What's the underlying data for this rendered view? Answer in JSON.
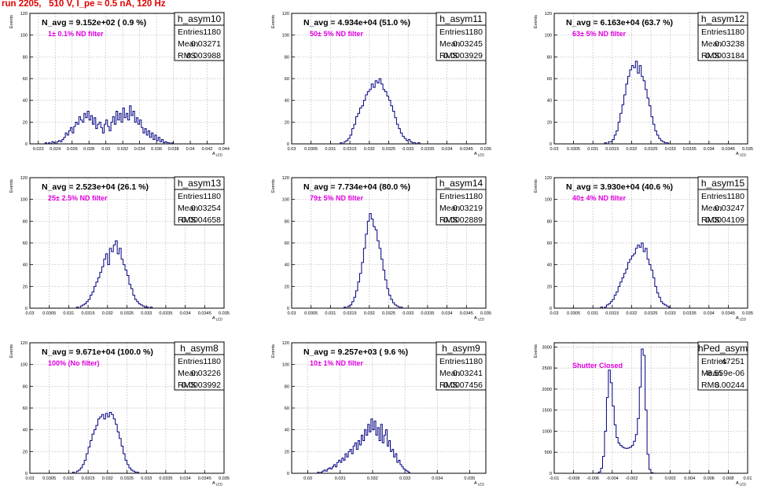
{
  "run_title": "run 2205,   510 V, I_pe ≈ 0.5 nA, 120 Hz",
  "colors": {
    "title": "#e00000",
    "histogram": "#000080",
    "filter_text": "#e000e0",
    "grid": "#b0b0b0"
  },
  "stat_labels": {
    "entries": "Entries",
    "mean": "Mean",
    "rms": "RMS"
  },
  "chart_data": [
    {
      "type": "histogram",
      "name": "h_asym10",
      "navg": "N_avg = 9.152e+02 ( 0.9 %)",
      "filter": "1± 0.1% ND filter",
      "entries": "1180",
      "mean": "0.03271",
      "rms": "0.003988",
      "xlabel": "A_LED",
      "ylabel": "Events",
      "xlim": [
        0.021,
        0.044
      ],
      "ylim": [
        0,
        120
      ],
      "xticks": [
        0.022,
        0.024,
        0.026,
        0.028,
        0.03,
        0.032,
        0.034,
        0.036,
        0.038,
        0.04,
        0.042,
        0.044
      ],
      "xtick_labels": [
        "0.022",
        "0.024",
        "0.026",
        "0.028",
        "0.03",
        "0.032",
        "0.034",
        "0.036",
        "0.038",
        "0.04",
        "0.042",
        "0.044"
      ],
      "yticks": [
        0,
        20,
        40,
        60,
        80,
        100,
        120
      ],
      "bin_low": 0.0228,
      "bin_width": 0.0002,
      "counts": [
        1,
        0,
        1,
        0,
        2,
        1,
        0,
        2,
        3,
        2,
        4,
        6,
        10,
        8,
        12,
        15,
        10,
        16,
        20,
        18,
        25,
        22,
        20,
        28,
        24,
        30,
        22,
        26,
        18,
        24,
        14,
        18,
        20,
        15,
        10,
        18,
        22,
        16,
        12,
        20,
        25,
        18,
        30,
        22,
        28,
        20,
        33,
        24,
        28,
        22,
        35,
        26,
        30,
        20,
        24,
        18,
        22,
        15,
        10,
        14,
        8,
        12,
        6,
        10,
        4,
        8,
        3,
        6,
        2,
        4,
        1,
        2,
        1,
        1,
        0,
        1
      ]
    },
    {
      "type": "histogram",
      "name": "h_asym11",
      "navg": "N_avg = 4.934e+04 (51.0 %)",
      "filter": "50± 5% ND filter",
      "entries": "1180",
      "mean": "0.03245",
      "rms": "0.0003929",
      "xlabel": "A_LED",
      "ylabel": "Events",
      "xlim": [
        0.03,
        0.035
      ],
      "ylim": [
        0,
        120
      ],
      "xticks": [
        0.03,
        0.0305,
        0.031,
        0.0315,
        0.032,
        0.0325,
        0.033,
        0.0335,
        0.034,
        0.0345,
        0.035
      ],
      "xtick_labels": [
        "0.03",
        "0.0305",
        "0.031",
        "0.0315",
        "0.032",
        "0.0325",
        "0.033",
        "0.0335",
        "0.034",
        "0.0345",
        "0.035"
      ],
      "yticks": [
        0,
        20,
        40,
        60,
        80,
        100,
        120
      ],
      "bin_low": 0.03125,
      "bin_width": 5e-05,
      "counts": [
        1,
        0,
        2,
        3,
        5,
        8,
        14,
        18,
        25,
        28,
        33,
        35,
        40,
        45,
        48,
        50,
        55,
        52,
        58,
        56,
        60,
        55,
        50,
        48,
        44,
        40,
        35,
        30,
        24,
        18,
        14,
        10,
        7,
        5,
        3,
        4,
        2,
        1,
        1,
        0,
        1
      ]
    },
    {
      "type": "histogram",
      "name": "h_asym12",
      "navg": "N_avg = 6.163e+04 (63.7 %)",
      "filter": "63± 5% ND filter",
      "entries": "1180",
      "mean": "0.03238",
      "rms": "0.0003184",
      "xlabel": "A_LED",
      "ylabel": "Events",
      "xlim": [
        0.03,
        0.035
      ],
      "ylim": [
        0,
        120
      ],
      "xticks": [
        0.03,
        0.0305,
        0.031,
        0.0315,
        0.032,
        0.0325,
        0.033,
        0.0335,
        0.034,
        0.0345,
        0.035
      ],
      "xtick_labels": [
        "0.03",
        "0.0305",
        "0.031",
        "0.0315",
        "0.032",
        "0.0325",
        "0.033",
        "0.0335",
        "0.034",
        "0.0345",
        "0.035"
      ],
      "yticks": [
        0,
        20,
        40,
        60,
        80,
        100,
        120
      ],
      "bin_low": 0.0313,
      "bin_width": 5e-05,
      "counts": [
        1,
        0,
        2,
        2,
        4,
        8,
        12,
        20,
        28,
        36,
        45,
        55,
        62,
        68,
        72,
        70,
        76,
        65,
        72,
        62,
        58,
        50,
        42,
        35,
        25,
        18,
        12,
        8,
        5,
        3,
        2,
        1,
        1
      ]
    },
    {
      "type": "histogram",
      "name": "h_asym13",
      "navg": "N_avg = 2.523e+04 (26.1 %)",
      "filter": "25± 2.5% ND filter",
      "entries": "1180",
      "mean": "0.03254",
      "rms": "0.0004658",
      "xlabel": "A_LED",
      "ylabel": "Events",
      "xlim": [
        0.03,
        0.035
      ],
      "ylim": [
        0,
        120
      ],
      "xticks": [
        0.03,
        0.0305,
        0.031,
        0.0315,
        0.032,
        0.0325,
        0.033,
        0.0335,
        0.034,
        0.0345,
        0.035
      ],
      "xtick_labels": [
        "0.03",
        "0.0305",
        "0.031",
        "0.0315",
        "0.032",
        "0.0325",
        "0.033",
        "0.0335",
        "0.034",
        "0.0345",
        "0.035"
      ],
      "yticks": [
        0,
        20,
        40,
        60,
        80,
        100,
        120
      ],
      "bin_low": 0.0312,
      "bin_width": 5e-05,
      "counts": [
        1,
        0,
        2,
        3,
        4,
        6,
        8,
        12,
        15,
        20,
        24,
        28,
        33,
        38,
        45,
        50,
        40,
        55,
        52,
        58,
        62,
        50,
        55,
        45,
        40,
        35,
        30,
        22,
        18,
        12,
        8,
        6,
        4,
        3,
        2,
        1,
        1,
        0,
        1
      ]
    },
    {
      "type": "histogram",
      "name": "h_asym14",
      "navg": "N_avg = 7.734e+04 (80.0 %)",
      "filter": "79± 5% ND filter",
      "entries": "1180",
      "mean": "0.03219",
      "rms": "0.0002889",
      "xlabel": "A_LED",
      "ylabel": "Events",
      "xlim": [
        0.03,
        0.035
      ],
      "ylim": [
        0,
        120
      ],
      "xticks": [
        0.03,
        0.0305,
        0.031,
        0.0315,
        0.032,
        0.0325,
        0.033,
        0.0335,
        0.034,
        0.0345,
        0.035
      ],
      "xtick_labels": [
        "0.03",
        "0.0305",
        "0.031",
        "0.0315",
        "0.032",
        "0.0325",
        "0.033",
        "0.0335",
        "0.034",
        "0.0345",
        "0.035"
      ],
      "yticks": [
        0,
        20,
        40,
        60,
        80,
        100,
        120
      ],
      "bin_low": 0.03135,
      "bin_width": 5e-05,
      "counts": [
        1,
        0,
        2,
        3,
        6,
        10,
        16,
        24,
        32,
        42,
        55,
        68,
        80,
        87,
        82,
        75,
        72,
        62,
        55,
        45,
        35,
        26,
        18,
        12,
        8,
        5,
        3,
        2,
        1,
        1
      ]
    },
    {
      "type": "histogram",
      "name": "h_asym15",
      "navg": "N_avg = 3.930e+04 (40.6 %)",
      "filter": "40± 4% ND filter",
      "entries": "1180",
      "mean": "0.03247",
      "rms": "0.0004109",
      "xlabel": "A_LED",
      "ylabel": "Events",
      "xlim": [
        0.03,
        0.035
      ],
      "ylim": [
        0,
        120
      ],
      "xticks": [
        0.03,
        0.0305,
        0.031,
        0.0315,
        0.032,
        0.0325,
        0.033,
        0.0335,
        0.034,
        0.0345,
        0.035
      ],
      "xtick_labels": [
        "0.03",
        "0.0305",
        "0.031",
        "0.0315",
        "0.032",
        "0.0325",
        "0.033",
        "0.0335",
        "0.034",
        "0.0345",
        "0.035"
      ],
      "yticks": [
        0,
        20,
        40,
        60,
        80,
        100,
        120
      ],
      "bin_low": 0.0312,
      "bin_width": 5e-05,
      "counts": [
        1,
        0,
        1,
        3,
        4,
        6,
        8,
        12,
        15,
        20,
        24,
        28,
        32,
        36,
        42,
        45,
        48,
        50,
        55,
        58,
        56,
        60,
        52,
        55,
        45,
        40,
        35,
        28,
        20,
        14,
        10,
        6,
        4,
        3,
        2,
        1
      ]
    },
    {
      "type": "histogram",
      "name": "h_asym8",
      "navg": "N_avg = 9.671e+04 (100.0 %)",
      "filter": "100% (No filter)",
      "entries": "1180",
      "mean": "0.03226",
      "rms": "0.0003992",
      "xlabel": "A_LED",
      "ylabel": "Events",
      "xlim": [
        0.03,
        0.035
      ],
      "ylim": [
        0,
        120
      ],
      "xticks": [
        0.03,
        0.0305,
        0.031,
        0.0315,
        0.032,
        0.0325,
        0.033,
        0.0335,
        0.034,
        0.0345,
        0.035
      ],
      "xtick_labels": [
        "0.03",
        "0.0305",
        "0.031",
        "0.0315",
        "0.032",
        "0.0325",
        "0.033",
        "0.0335",
        "0.034",
        "0.0345",
        "0.035"
      ],
      "yticks": [
        0,
        20,
        40,
        60,
        80,
        100,
        120
      ],
      "bin_low": 0.0311,
      "bin_width": 5e-05,
      "counts": [
        1,
        0,
        2,
        3,
        5,
        8,
        12,
        18,
        24,
        30,
        36,
        40,
        44,
        50,
        52,
        54,
        50,
        55,
        52,
        56,
        54,
        50,
        45,
        38,
        32,
        25,
        18,
        12,
        8,
        5,
        3,
        2,
        1,
        1
      ]
    },
    {
      "type": "histogram",
      "name": "h_asym9",
      "navg": "N_avg = 9.257e+03 ( 9.6 %)",
      "filter": "10± 1% ND filter",
      "entries": "1180",
      "mean": "0.03241",
      "rms": "0.0007456",
      "xlabel": "A_LED",
      "ylabel": "Events",
      "xlim": [
        0.0295,
        0.0355
      ],
      "ylim": [
        0,
        120
      ],
      "xticks": [
        0.03,
        0.031,
        0.032,
        0.033,
        0.034,
        0.035
      ],
      "xtick_labels": [
        "0.03",
        "0.031",
        "0.032",
        "0.033",
        "0.034",
        "0.035"
      ],
      "yticks": [
        0,
        20,
        40,
        60,
        80,
        100,
        120
      ],
      "bin_low": 0.0303,
      "bin_width": 5e-05,
      "counts": [
        1,
        0,
        1,
        2,
        3,
        2,
        4,
        5,
        4,
        6,
        8,
        6,
        10,
        12,
        10,
        14,
        12,
        18,
        15,
        20,
        22,
        18,
        25,
        28,
        22,
        30,
        26,
        35,
        30,
        40,
        35,
        45,
        38,
        50,
        40,
        48,
        35,
        42,
        30,
        45,
        28,
        35,
        40,
        25,
        30,
        20,
        22,
        15,
        18,
        10,
        12,
        8,
        6,
        4,
        3,
        2,
        1
      ]
    },
    {
      "type": "histogram",
      "name": "hPed_asym",
      "navg": "",
      "filter": "Shutter Closed",
      "entries": "47251",
      "mean": "-8.559e-06",
      "rms": "0.00244",
      "xlabel": "A_LED",
      "ylabel": "Events",
      "xlim": [
        -0.01,
        0.01
      ],
      "ylim": [
        0,
        3100
      ],
      "xticks": [
        -0.01,
        -0.008,
        -0.006,
        -0.004,
        -0.002,
        0,
        0.002,
        0.004,
        0.006,
        0.008,
        0.01
      ],
      "xtick_labels": [
        "-0.01",
        "-0.008",
        "-0.006",
        "-0.004",
        "-0.002",
        "0",
        "0.002",
        "0.004",
        "0.006",
        "0.008",
        "0.01"
      ],
      "yticks": [
        0,
        500,
        1000,
        1500,
        2000,
        2500,
        3000
      ],
      "bin_low": -0.0056,
      "bin_width": 0.0002,
      "counts": [
        5,
        30,
        120,
        400,
        1000,
        1800,
        2450,
        2150,
        1600,
        1150,
        850,
        720,
        660,
        620,
        600,
        590,
        600,
        620,
        660,
        760,
        920,
        1300,
        2050,
        2950,
        2800,
        1500,
        450,
        90,
        15,
        3
      ]
    }
  ]
}
